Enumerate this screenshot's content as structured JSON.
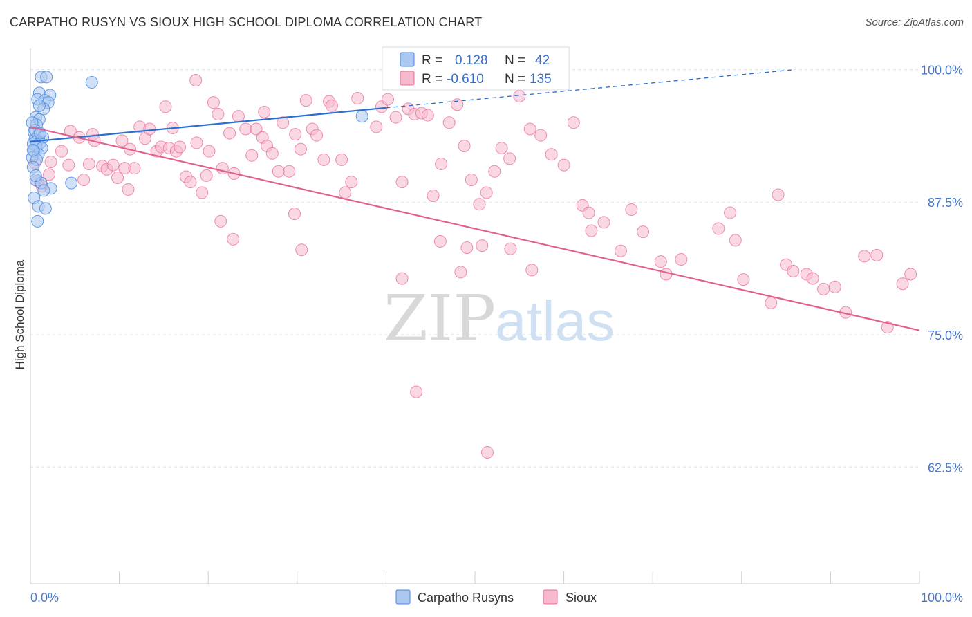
{
  "header": {
    "title": "CARPATHO RUSYN VS SIOUX HIGH SCHOOL DIPLOMA CORRELATION CHART",
    "source": "Source: ZipAtlas.com"
  },
  "watermark": {
    "zip": "ZIP",
    "atlas": "atlas"
  },
  "colors": {
    "blue": "#4a86e0",
    "blue_fill": "#aac8f0",
    "blue_line": "#2a6fd0",
    "pink": "#e86a98",
    "pink_fill": "#f5b8cc",
    "pink_line": "#e06090",
    "tick_text": "#4a78c8",
    "grid": "#dde1e6"
  },
  "legend_top": {
    "rows": [
      {
        "r_label": "R =",
        "r_value": "0.128",
        "n_label": "N =",
        "n_value": "42"
      },
      {
        "r_label": "R =",
        "r_value": "-0.610",
        "n_label": "N =",
        "n_value": "135"
      }
    ]
  },
  "chart_data": {
    "type": "scatter",
    "title": "CARPATHO RUSYN VS SIOUX HIGH SCHOOL DIPLOMA CORRELATION CHART",
    "xlabel": "",
    "ylabel": "High School Diploma",
    "xlim": [
      0,
      100
    ],
    "ylim": [
      51.5,
      102
    ],
    "x_tick_labels": [
      "0.0%",
      "100.0%"
    ],
    "y_ticks": [
      62.5,
      75.0,
      87.5,
      100.0
    ],
    "y_tick_labels": [
      "62.5%",
      "75.0%",
      "87.5%",
      "100.0%"
    ],
    "grid": "horizontal dashed",
    "legend_position": "bottom-center",
    "series": [
      {
        "name": "Carpatho Rusyns",
        "color": "#4a86e0",
        "trend": {
          "x": [
            0,
            40
          ],
          "y": [
            93.2,
            96.4
          ],
          "extended_to": [
            86,
            100
          ]
        },
        "points": [
          [
            1.2,
            99.3
          ],
          [
            1.8,
            99.3
          ],
          [
            6.9,
            98.8
          ],
          [
            1.0,
            97.8
          ],
          [
            2.2,
            97.6
          ],
          [
            0.8,
            97.2
          ],
          [
            1.6,
            97.1
          ],
          [
            2.0,
            96.9
          ],
          [
            1.5,
            96.3
          ],
          [
            0.6,
            95.5
          ],
          [
            1.0,
            95.3
          ],
          [
            0.7,
            94.8
          ],
          [
            0.4,
            94.1
          ],
          [
            0.9,
            93.8
          ],
          [
            1.4,
            93.6
          ],
          [
            0.5,
            93.4
          ],
          [
            0.8,
            93.3
          ],
          [
            1.1,
            93.1
          ],
          [
            0.3,
            93.0
          ],
          [
            0.6,
            92.8
          ],
          [
            1.3,
            92.6
          ],
          [
            0.4,
            92.3
          ],
          [
            0.9,
            92.0
          ],
          [
            0.2,
            91.7
          ],
          [
            0.7,
            91.5
          ],
          [
            0.3,
            90.8
          ],
          [
            0.6,
            89.6
          ],
          [
            1.2,
            89.3
          ],
          [
            4.6,
            89.3
          ],
          [
            2.3,
            88.8
          ],
          [
            1.5,
            88.6
          ],
          [
            0.4,
            87.9
          ],
          [
            0.9,
            87.1
          ],
          [
            1.7,
            86.9
          ],
          [
            0.8,
            85.7
          ],
          [
            37.3,
            95.6
          ],
          [
            0.5,
            94.3
          ],
          [
            1.1,
            94.0
          ],
          [
            0.3,
            92.4
          ],
          [
            0.6,
            90.0
          ],
          [
            1.0,
            96.6
          ],
          [
            0.2,
            95.0
          ]
        ]
      },
      {
        "name": "Sioux",
        "color": "#e86a98",
        "trend": {
          "x": [
            0,
            100
          ],
          "y": [
            94.6,
            75.4
          ]
        },
        "points": [
          [
            0.5,
            91.2
          ],
          [
            0.8,
            89.5
          ],
          [
            1.3,
            89.0
          ],
          [
            2.1,
            90.1
          ],
          [
            2.3,
            91.3
          ],
          [
            3.5,
            92.3
          ],
          [
            4.3,
            91.0
          ],
          [
            4.5,
            94.2
          ],
          [
            5.5,
            93.6
          ],
          [
            6.0,
            89.6
          ],
          [
            6.6,
            91.1
          ],
          [
            7.0,
            93.9
          ],
          [
            7.2,
            93.3
          ],
          [
            8.1,
            90.9
          ],
          [
            8.6,
            90.6
          ],
          [
            9.3,
            91.0
          ],
          [
            9.8,
            89.8
          ],
          [
            10.3,
            93.3
          ],
          [
            10.6,
            90.7
          ],
          [
            11.2,
            92.5
          ],
          [
            11.7,
            90.7
          ],
          [
            12.3,
            94.6
          ],
          [
            12.9,
            93.5
          ],
          [
            13.4,
            94.4
          ],
          [
            14.2,
            92.3
          ],
          [
            14.7,
            92.7
          ],
          [
            15.2,
            96.5
          ],
          [
            15.6,
            92.6
          ],
          [
            16.0,
            94.5
          ],
          [
            16.4,
            92.3
          ],
          [
            16.8,
            92.7
          ],
          [
            17.5,
            89.9
          ],
          [
            18.0,
            89.4
          ],
          [
            18.7,
            93.1
          ],
          [
            19.3,
            88.4
          ],
          [
            19.8,
            90.0
          ],
          [
            20.1,
            92.3
          ],
          [
            20.6,
            96.9
          ],
          [
            21.1,
            95.8
          ],
          [
            21.6,
            90.7
          ],
          [
            22.4,
            94.0
          ],
          [
            22.9,
            90.2
          ],
          [
            23.4,
            95.6
          ],
          [
            24.2,
            94.4
          ],
          [
            24.9,
            91.9
          ],
          [
            25.4,
            94.4
          ],
          [
            26.1,
            93.6
          ],
          [
            26.6,
            92.8
          ],
          [
            27.2,
            92.1
          ],
          [
            27.9,
            90.4
          ],
          [
            28.4,
            95.0
          ],
          [
            29.1,
            90.4
          ],
          [
            29.8,
            93.9
          ],
          [
            30.4,
            92.5
          ],
          [
            31.0,
            97.1
          ],
          [
            31.7,
            94.4
          ],
          [
            32.2,
            93.8
          ],
          [
            33.0,
            91.5
          ],
          [
            33.6,
            97.0
          ],
          [
            33.9,
            96.6
          ],
          [
            35.0,
            91.5
          ],
          [
            35.4,
            88.4
          ],
          [
            36.1,
            89.4
          ],
          [
            36.8,
            97.3
          ],
          [
            38.9,
            94.6
          ],
          [
            39.5,
            96.5
          ],
          [
            40.2,
            97.2
          ],
          [
            41.1,
            95.5
          ],
          [
            41.8,
            89.4
          ],
          [
            42.5,
            96.3
          ],
          [
            43.2,
            95.8
          ],
          [
            44.0,
            95.9
          ],
          [
            44.7,
            95.7
          ],
          [
            45.3,
            88.1
          ],
          [
            46.2,
            91.1
          ],
          [
            47.1,
            95.0
          ],
          [
            48.0,
            96.7
          ],
          [
            48.8,
            92.8
          ],
          [
            49.6,
            89.6
          ],
          [
            50.5,
            87.3
          ],
          [
            51.3,
            88.4
          ],
          [
            52.2,
            90.4
          ],
          [
            53.0,
            92.6
          ],
          [
            53.9,
            91.6
          ],
          [
            55.0,
            97.5
          ],
          [
            56.2,
            94.4
          ],
          [
            57.4,
            93.8
          ],
          [
            58.6,
            92.0
          ],
          [
            60.0,
            91.0
          ],
          [
            61.1,
            95.0
          ],
          [
            11.0,
            88.7
          ],
          [
            21.4,
            85.7
          ],
          [
            22.8,
            84.0
          ],
          [
            29.7,
            86.4
          ],
          [
            30.5,
            83.0
          ],
          [
            41.8,
            80.3
          ],
          [
            46.1,
            83.8
          ],
          [
            48.4,
            80.9
          ],
          [
            49.1,
            83.2
          ],
          [
            50.8,
            83.4
          ],
          [
            54.0,
            83.1
          ],
          [
            56.4,
            81.1
          ],
          [
            62.1,
            87.2
          ],
          [
            62.8,
            86.5
          ],
          [
            63.1,
            84.8
          ],
          [
            64.5,
            85.6
          ],
          [
            66.4,
            82.9
          ],
          [
            67.6,
            86.8
          ],
          [
            68.9,
            84.7
          ],
          [
            70.9,
            81.9
          ],
          [
            71.5,
            80.7
          ],
          [
            73.2,
            82.1
          ],
          [
            77.4,
            85.0
          ],
          [
            78.7,
            86.5
          ],
          [
            79.3,
            83.9
          ],
          [
            80.2,
            80.2
          ],
          [
            83.3,
            78.0
          ],
          [
            84.1,
            88.2
          ],
          [
            85.0,
            81.6
          ],
          [
            85.8,
            81.0
          ],
          [
            87.3,
            80.7
          ],
          [
            88.0,
            80.3
          ],
          [
            89.2,
            79.3
          ],
          [
            90.5,
            79.5
          ],
          [
            91.7,
            77.1
          ],
          [
            93.8,
            82.4
          ],
          [
            95.2,
            82.5
          ],
          [
            96.4,
            75.7
          ],
          [
            98.1,
            79.8
          ],
          [
            99.0,
            80.7
          ],
          [
            18.6,
            99.0
          ],
          [
            26.3,
            96.0
          ],
          [
            51.4,
            63.9
          ],
          [
            43.4,
            69.6
          ]
        ]
      }
    ]
  },
  "legend_bottom": {
    "items": [
      {
        "label": "Carpatho Rusyns",
        "color": "#aac8f0",
        "border": "#4a86e0"
      },
      {
        "label": "Sioux",
        "color": "#f5b8cc",
        "border": "#e86a98"
      }
    ]
  }
}
